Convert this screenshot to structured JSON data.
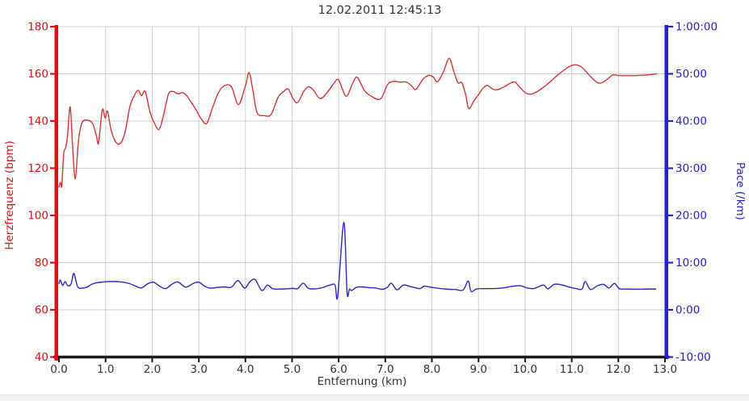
{
  "colors": {
    "background": "#ffffff",
    "heart_rate": "#dd3333",
    "heart_rate_axis": "#dd1111",
    "pace": "#2828c8",
    "pace_axis": "#2222cc",
    "grid": "#cccccc",
    "x_axis": "#1a1a1a",
    "text": "#333333",
    "footer_bar": "#f1f1f1"
  },
  "chart_data": {
    "type": "line",
    "title": "12.02.2011 12:45:13",
    "xlabel": "Entfernung (km)",
    "ylabel_left": "Herzfrequenz (bpm)",
    "ylabel_right": "Pace (/km)",
    "grid": true,
    "legend_position": "none",
    "xlim": [
      0,
      13
    ],
    "ylim_left": [
      40,
      180
    ],
    "ylim_right": [
      -10,
      60
    ],
    "x_ticks": [
      {
        "label": "0.0",
        "value": 0
      },
      {
        "label": "1.0",
        "value": 1
      },
      {
        "label": "2.0",
        "value": 2
      },
      {
        "label": "3.0",
        "value": 3
      },
      {
        "label": "4.0",
        "value": 4
      },
      {
        "label": "5.0",
        "value": 5
      },
      {
        "label": "6.0",
        "value": 6
      },
      {
        "label": "7.0",
        "value": 7
      },
      {
        "label": "8.0",
        "value": 8
      },
      {
        "label": "9.0",
        "value": 9
      },
      {
        "label": "10.0",
        "value": 10
      },
      {
        "label": "11.0",
        "value": 11
      },
      {
        "label": "12.0",
        "value": 12
      },
      {
        "label": "13.0",
        "value": 13
      }
    ],
    "y_ticks_left": [
      {
        "label": "40",
        "value": 40
      },
      {
        "label": "60",
        "value": 60
      },
      {
        "label": "80",
        "value": 80
      },
      {
        "label": "100",
        "value": 100
      },
      {
        "label": "120",
        "value": 120
      },
      {
        "label": "140",
        "value": 140
      },
      {
        "label": "160",
        "value": 160
      },
      {
        "label": "180",
        "value": 180
      }
    ],
    "y_ticks_right": [
      {
        "label": "-10:00",
        "value": -10
      },
      {
        "label": "0:00",
        "value": 0
      },
      {
        "label": "10:00",
        "value": 10
      },
      {
        "label": "20:00",
        "value": 20
      },
      {
        "label": "30:00",
        "value": 30
      },
      {
        "label": "40:00",
        "value": 40
      },
      {
        "label": "50:00",
        "value": 50
      },
      {
        "label": "1:00:00",
        "value": 60
      }
    ],
    "series": [
      {
        "id": "heart-rate",
        "name": "Herzfrequenz (bpm)",
        "axis": "left",
        "color": "#dd3333",
        "unit": "bpm",
        "x": [
          0,
          0.03,
          0.06,
          0.1,
          0.14,
          0.18,
          0.24,
          0.29,
          0.35,
          0.42,
          0.5,
          0.62,
          0.72,
          0.8,
          0.85,
          0.93,
          0.99,
          1.04,
          1.12,
          1.22,
          1.32,
          1.42,
          1.52,
          1.62,
          1.7,
          1.77,
          1.85,
          1.95,
          2.05,
          2.15,
          2.25,
          2.35,
          2.45,
          2.55,
          2.65,
          2.75,
          2.85,
          2.95,
          3.05,
          3.17,
          3.3,
          3.42,
          3.55,
          3.7,
          3.85,
          4.0,
          4.08,
          4.16,
          4.25,
          4.4,
          4.55,
          4.7,
          4.82,
          4.92,
          5.02,
          5.12,
          5.25,
          5.35,
          5.45,
          5.6,
          5.75,
          5.9,
          6.0,
          6.16,
          6.3,
          6.4,
          6.55,
          6.7,
          6.9,
          7.05,
          7.18,
          7.32,
          7.45,
          7.56,
          7.66,
          7.8,
          7.92,
          8.02,
          8.12,
          8.25,
          8.37,
          8.47,
          8.56,
          8.64,
          8.72,
          8.79,
          8.9,
          9.0,
          9.1,
          9.19,
          9.3,
          9.4,
          9.55,
          9.68,
          9.78,
          9.9,
          10.02,
          10.15,
          10.3,
          10.5,
          10.7,
          10.9,
          11.05,
          11.2,
          11.35,
          11.5,
          11.61,
          11.75,
          11.88,
          12.0,
          12.2,
          12.4,
          12.6,
          12.82
        ],
        "y": [
          112,
          114,
          112.5,
          126,
          128.5,
          133,
          146,
          130,
          115.5,
          132,
          139.5,
          140.3,
          139,
          134,
          130.8,
          144.8,
          141.2,
          144.2,
          136,
          131,
          130.6,
          135.5,
          146,
          151,
          153,
          150.8,
          152.5,
          144,
          139,
          136.5,
          143,
          151.5,
          152.5,
          151.5,
          152,
          150.5,
          147.5,
          144.5,
          141,
          139,
          146,
          152,
          155,
          154.5,
          147,
          155,
          160.5,
          153,
          143.5,
          142.3,
          142.8,
          150,
          152.5,
          153.5,
          149.5,
          147.8,
          152.5,
          154.5,
          153.3,
          149.5,
          152,
          156,
          157.4,
          150.5,
          156,
          158.5,
          153,
          150.5,
          149.4,
          155.5,
          156.8,
          156.5,
          156.5,
          155,
          153.4,
          157.5,
          159.3,
          158.8,
          156.6,
          161,
          166.6,
          161,
          156.2,
          156.3,
          151.5,
          145.3,
          148.5,
          151.2,
          154,
          155.1,
          153.6,
          153.2,
          154.5,
          156,
          156.5,
          154,
          151.8,
          151.5,
          153,
          156,
          159.5,
          162.5,
          163.8,
          163,
          160,
          157,
          156,
          157.5,
          159.5,
          159.3,
          159.2,
          159.3,
          159.5,
          160
        ]
      },
      {
        "id": "pace",
        "name": "Pace (/km)",
        "axis": "right",
        "color": "#2828c8",
        "unit": "min/km",
        "x": [
          0,
          0.03,
          0.08,
          0.13,
          0.19,
          0.26,
          0.32,
          0.4,
          0.5,
          0.6,
          0.7,
          0.82,
          0.95,
          1.1,
          1.3,
          1.5,
          1.65,
          1.77,
          1.9,
          2.03,
          2.16,
          2.29,
          2.42,
          2.55,
          2.72,
          2.88,
          3.0,
          3.12,
          3.24,
          3.4,
          3.55,
          3.7,
          3.84,
          3.98,
          4.1,
          4.21,
          4.35,
          4.47,
          4.58,
          4.72,
          4.88,
          5.02,
          5.12,
          5.24,
          5.35,
          5.5,
          5.65,
          5.8,
          5.92,
          5.98,
          6.11,
          6.18,
          6.23,
          6.28,
          6.38,
          6.5,
          6.65,
          6.8,
          6.94,
          7.05,
          7.13,
          7.25,
          7.39,
          7.55,
          7.74,
          7.83,
          7.95,
          8.1,
          8.3,
          8.5,
          8.67,
          8.78,
          8.84,
          8.95,
          9.1,
          9.3,
          9.5,
          9.7,
          9.9,
          10.05,
          10.2,
          10.39,
          10.49,
          10.62,
          10.78,
          10.95,
          11.1,
          11.22,
          11.29,
          11.4,
          11.55,
          11.68,
          11.8,
          11.92,
          12.02,
          12.2,
          12.4,
          12.6,
          12.8
        ],
        "y": [
          5.6,
          6.3,
          5.15,
          6.0,
          5.1,
          5.5,
          7.7,
          4.9,
          4.6,
          4.8,
          5.4,
          5.75,
          5.9,
          6.0,
          5.95,
          5.6,
          5.0,
          4.65,
          5.5,
          5.85,
          5.0,
          4.5,
          5.4,
          5.9,
          4.8,
          5.6,
          5.85,
          5.05,
          4.6,
          4.75,
          4.85,
          4.8,
          6.2,
          4.6,
          6.0,
          6.4,
          4.1,
          5.25,
          4.5,
          4.4,
          4.45,
          4.55,
          4.5,
          5.65,
          4.55,
          4.45,
          4.7,
          5.2,
          5.3,
          2.9,
          18.5,
          3.7,
          4.4,
          4.1,
          4.75,
          4.85,
          4.7,
          4.6,
          4.35,
          4.8,
          5.65,
          4.25,
          5.25,
          4.9,
          4.5,
          5.0,
          4.85,
          4.6,
          4.4,
          4.3,
          4.2,
          6.1,
          3.9,
          4.4,
          4.5,
          4.5,
          4.6,
          4.95,
          5.1,
          4.6,
          4.55,
          5.25,
          4.45,
          5.4,
          5.3,
          4.8,
          4.5,
          4.4,
          6.0,
          4.3,
          5.1,
          5.4,
          4.65,
          5.6,
          4.5,
          4.4,
          4.37,
          4.4,
          4.4
        ]
      }
    ]
  }
}
